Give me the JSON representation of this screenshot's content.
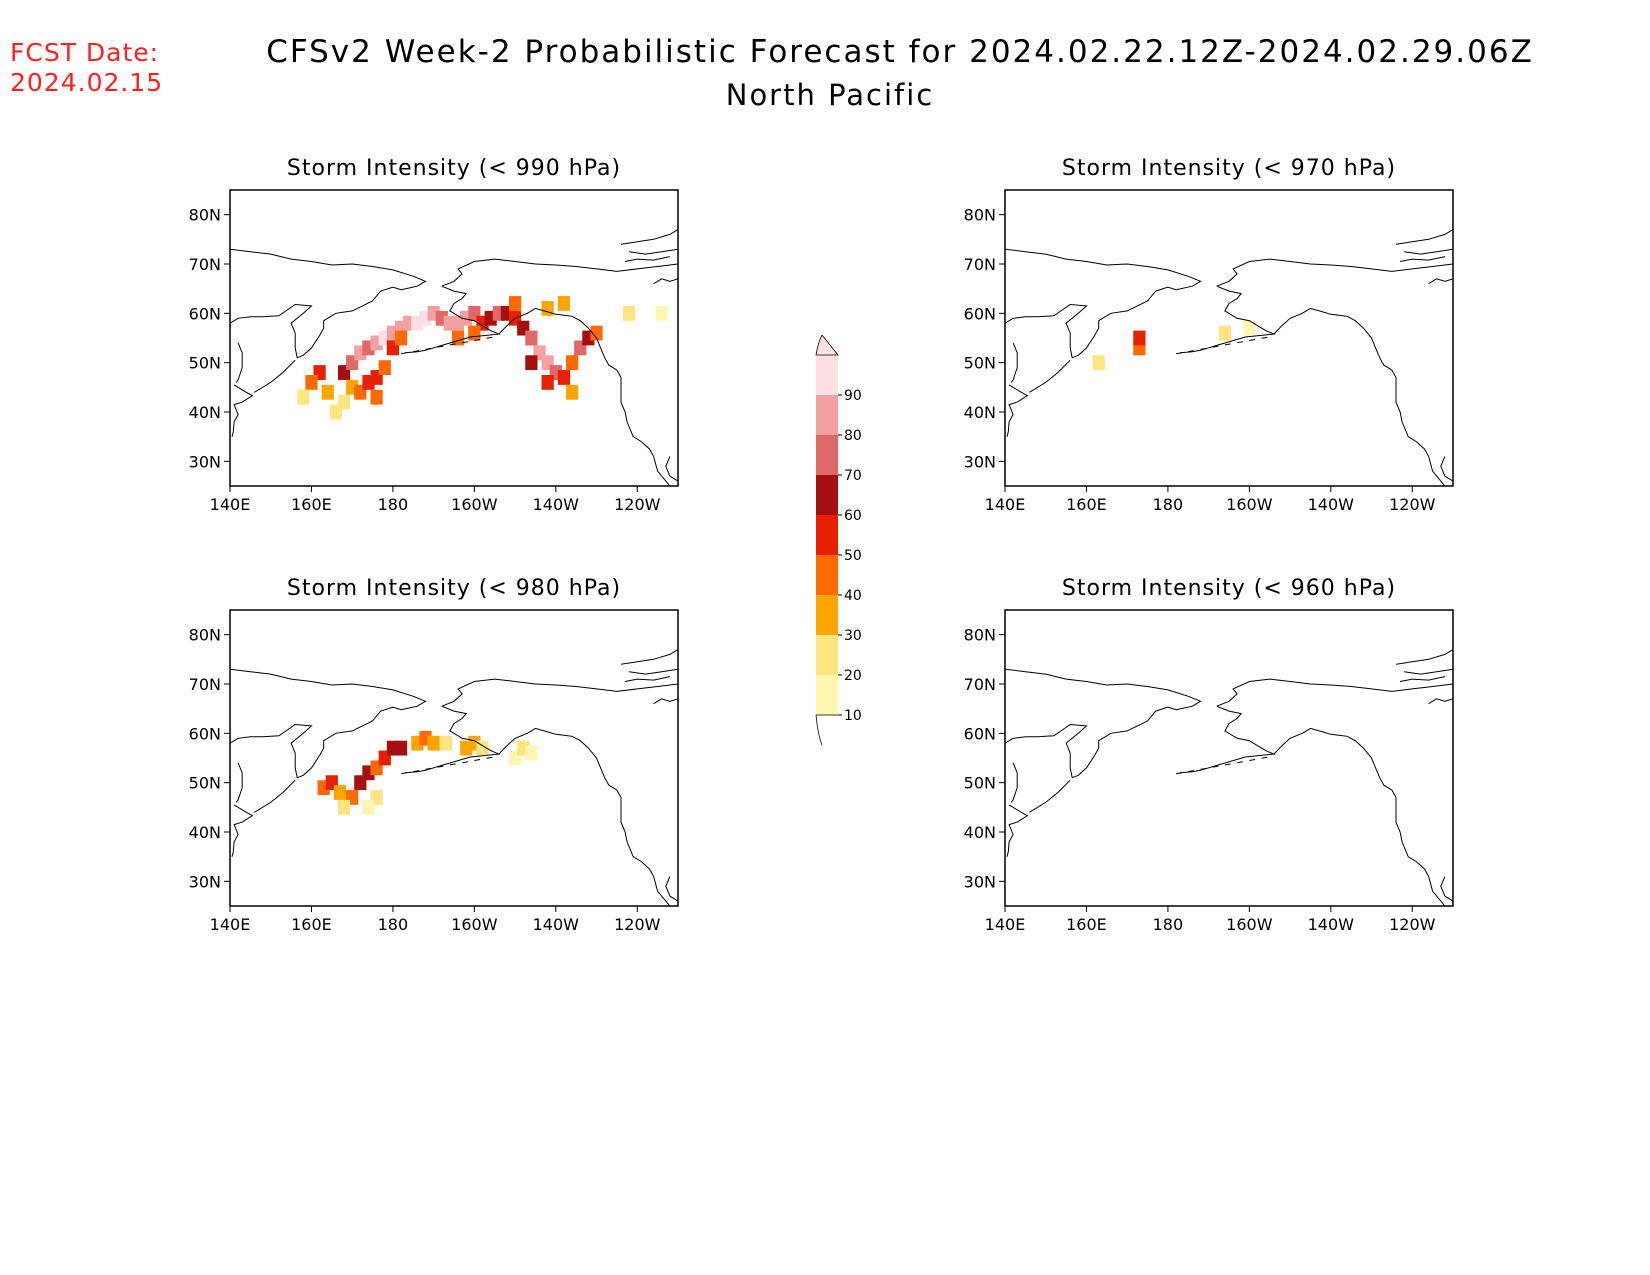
{
  "header": {
    "fcst_label": "FCST Date:",
    "fcst_date": "2024.02.15",
    "title": "CFSv2 Week-2 Probabilistic Forecast for 2024.02.22.12Z-2024.02.29.06Z",
    "subtitle": "North Pacific"
  },
  "axes": {
    "lat_ticks": [
      "80N",
      "70N",
      "60N",
      "50N",
      "40N",
      "30N"
    ],
    "lat_values": [
      80,
      70,
      60,
      50,
      40,
      30
    ],
    "lon_ticks": [
      "140E",
      "160E",
      "180",
      "160W",
      "140W",
      "120W"
    ],
    "lon_values": [
      140,
      160,
      180,
      200,
      220,
      240
    ],
    "lon_range": [
      140,
      250
    ],
    "lat_range": [
      25,
      85
    ]
  },
  "panels": [
    {
      "id": "p990",
      "title": "Storm Intensity (< 990 hPa)"
    },
    {
      "id": "p970",
      "title": "Storm Intensity (< 970 hPa)"
    },
    {
      "id": "p980",
      "title": "Storm Intensity (< 980 hPa)"
    },
    {
      "id": "p960",
      "title": "Storm Intensity (< 960 hPa)"
    }
  ],
  "colorbar": {
    "levels": [
      "10",
      "20",
      "30",
      "40",
      "50",
      "60",
      "70",
      "80",
      "90"
    ],
    "colors": [
      "#fff7b0",
      "#fde57f",
      "#ffa500",
      "#ff6a00",
      "#e82000",
      "#a50f0f",
      "#e06868",
      "#f4a0a0",
      "#fde0e4"
    ]
  },
  "chart_data": {
    "type": "heatmap",
    "units": "probability (%)",
    "panels": [
      {
        "title": "Storm Intensity (< 990 hPa)",
        "cells": [
          [
            168,
            42,
            20
          ],
          [
            170,
            45,
            35
          ],
          [
            172,
            44,
            45
          ],
          [
            174,
            46,
            55
          ],
          [
            176,
            47,
            55
          ],
          [
            176,
            43,
            45
          ],
          [
            178,
            49,
            40
          ],
          [
            162,
            48,
            50
          ],
          [
            160,
            46,
            45
          ],
          [
            164,
            44,
            30
          ],
          [
            166,
            40,
            20
          ],
          [
            168,
            48,
            65
          ],
          [
            170,
            50,
            70
          ],
          [
            172,
            52,
            80
          ],
          [
            174,
            53,
            75
          ],
          [
            176,
            54,
            85
          ],
          [
            178,
            55,
            90
          ],
          [
            180,
            56,
            85
          ],
          [
            182,
            57,
            80
          ],
          [
            184,
            58,
            85
          ],
          [
            186,
            58,
            90
          ],
          [
            188,
            59,
            90
          ],
          [
            190,
            60,
            85
          ],
          [
            192,
            59,
            75
          ],
          [
            194,
            58,
            80
          ],
          [
            196,
            58,
            85
          ],
          [
            198,
            59,
            80
          ],
          [
            200,
            60,
            70
          ],
          [
            202,
            58,
            55
          ],
          [
            204,
            59,
            60
          ],
          [
            206,
            60,
            75
          ],
          [
            208,
            60,
            65
          ],
          [
            210,
            59,
            50
          ],
          [
            212,
            57,
            60
          ],
          [
            214,
            55,
            75
          ],
          [
            216,
            52,
            85
          ],
          [
            218,
            50,
            80
          ],
          [
            220,
            48,
            70
          ],
          [
            222,
            47,
            55
          ],
          [
            224,
            50,
            45
          ],
          [
            226,
            53,
            70
          ],
          [
            228,
            55,
            65
          ],
          [
            230,
            56,
            45
          ],
          [
            210,
            62,
            40
          ],
          [
            218,
            61,
            30
          ],
          [
            222,
            62,
            35
          ],
          [
            238,
            60,
            25
          ],
          [
            246,
            60,
            15
          ],
          [
            158,
            43,
            20
          ],
          [
            180,
            53,
            55
          ],
          [
            182,
            55,
            40
          ],
          [
            196,
            55,
            40
          ],
          [
            200,
            56,
            45
          ],
          [
            214,
            50,
            65
          ],
          [
            218,
            46,
            55
          ],
          [
            224,
            44,
            35
          ]
        ]
      },
      {
        "title": "Storm Intensity (< 970 hPa)",
        "cells": [
          [
            163,
            50,
            20
          ],
          [
            173,
            53,
            45
          ],
          [
            173,
            55,
            55
          ],
          [
            194,
            56,
            20
          ],
          [
            200,
            57,
            15
          ]
        ]
      },
      {
        "title": "Storm Intensity (< 980 hPa)",
        "cells": [
          [
            163,
            49,
            40
          ],
          [
            165,
            50,
            55
          ],
          [
            167,
            48,
            30
          ],
          [
            170,
            47,
            40
          ],
          [
            172,
            50,
            65
          ],
          [
            174,
            52,
            60
          ],
          [
            176,
            53,
            45
          ],
          [
            178,
            55,
            55
          ],
          [
            180,
            57,
            60
          ],
          [
            182,
            57,
            65
          ],
          [
            186,
            58,
            35
          ],
          [
            188,
            59,
            45
          ],
          [
            190,
            58,
            30
          ],
          [
            193,
            58,
            25
          ],
          [
            198,
            57,
            35
          ],
          [
            200,
            58,
            30
          ],
          [
            202,
            57,
            20
          ],
          [
            210,
            55,
            15
          ],
          [
            212,
            57,
            20
          ],
          [
            214,
            56,
            15
          ],
          [
            176,
            47,
            25
          ],
          [
            174,
            45,
            15
          ],
          [
            168,
            45,
            20
          ]
        ]
      },
      {
        "title": "Storm Intensity (< 960 hPa)",
        "cells": []
      }
    ]
  }
}
